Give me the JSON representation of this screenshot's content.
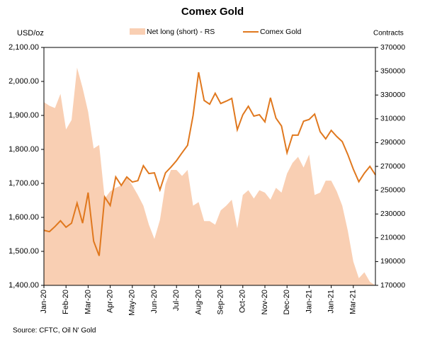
{
  "chart_data": {
    "type": "line",
    "title": "Comex Gold",
    "y_label": "USD/oz",
    "y2_label": "Contracts",
    "source": "Source: CFTC, Oil N' Gold",
    "legend": "top",
    "categories": [
      "Jan-20",
      null,
      null,
      null,
      "Feb-20",
      null,
      null,
      null,
      "Mar-20",
      null,
      null,
      null,
      "Apr-20",
      null,
      null,
      null,
      "May-20",
      null,
      null,
      null,
      "Jun-20",
      null,
      null,
      null,
      "Jul-20",
      null,
      null,
      null,
      "Aug-20",
      null,
      null,
      null,
      "Sep-20",
      null,
      null,
      null,
      "Oct-20",
      null,
      null,
      null,
      "Nov-20",
      null,
      null,
      null,
      "Dec-20",
      null,
      null,
      null,
      "Jan-21",
      null,
      null,
      null,
      "Jan-21",
      null,
      null,
      null,
      "Mar-21",
      null,
      null,
      null,
      null
    ],
    "series": [
      {
        "name": "Net long (short) - RS",
        "type": "area",
        "axis": "y2",
        "color": "#f9cfb3",
        "values": [
          324000,
          321000,
          319000,
          331000,
          301000,
          309000,
          353000,
          336000,
          316000,
          285000,
          288000,
          243000,
          249000,
          252000,
          254000,
          261000,
          254000,
          246000,
          237000,
          221000,
          209000,
          225000,
          255000,
          267000,
          267000,
          262000,
          267000,
          237000,
          240000,
          224000,
          224000,
          221000,
          233000,
          237000,
          242000,
          218000,
          246000,
          250000,
          243000,
          250000,
          248000,
          242000,
          252000,
          248000,
          264000,
          273000,
          278000,
          269000,
          280000,
          246000,
          248000,
          258000,
          258000,
          249000,
          237000,
          216000,
          190000,
          176000,
          181000,
          173000,
          170000
        ]
      },
      {
        "name": "Comex Gold",
        "type": "line",
        "color": "#e0781e",
        "values": [
          1562,
          1558,
          1573,
          1590,
          1571,
          1583,
          1642,
          1583,
          1673,
          1530,
          1487,
          1660,
          1635,
          1719,
          1694,
          1719,
          1704,
          1708,
          1752,
          1729,
          1731,
          1681,
          1731,
          1748,
          1767,
          1790,
          1812,
          1900,
          2027,
          1944,
          1933,
          1965,
          1935,
          1942,
          1950,
          1858,
          1902,
          1927,
          1898,
          1902,
          1881,
          1952,
          1892,
          1869,
          1790,
          1842,
          1842,
          1883,
          1888,
          1904,
          1852,
          1831,
          1856,
          1838,
          1823,
          1785,
          1742,
          1705,
          1730,
          1750,
          1725
        ]
      }
    ],
    "ylim": [
      1400,
      2100
    ],
    "yticks": [
      {
        "value": 1400,
        "label": "1,400.00"
      },
      {
        "value": 1500,
        "label": "1,500.00"
      },
      {
        "value": 1600,
        "label": "1,600.00"
      },
      {
        "value": 1700,
        "label": "1,700.00"
      },
      {
        "value": 1800,
        "label": "1,800.00"
      },
      {
        "value": 1900,
        "label": "1,900.00"
      },
      {
        "value": 2000,
        "label": "2,000.00"
      },
      {
        "value": 2100,
        "label": "2,100.00"
      }
    ],
    "y2lim": [
      170000,
      370000
    ],
    "y2ticks": [
      170000,
      190000,
      210000,
      230000,
      250000,
      270000,
      290000,
      310000,
      330000,
      350000,
      370000
    ],
    "grid": false
  }
}
